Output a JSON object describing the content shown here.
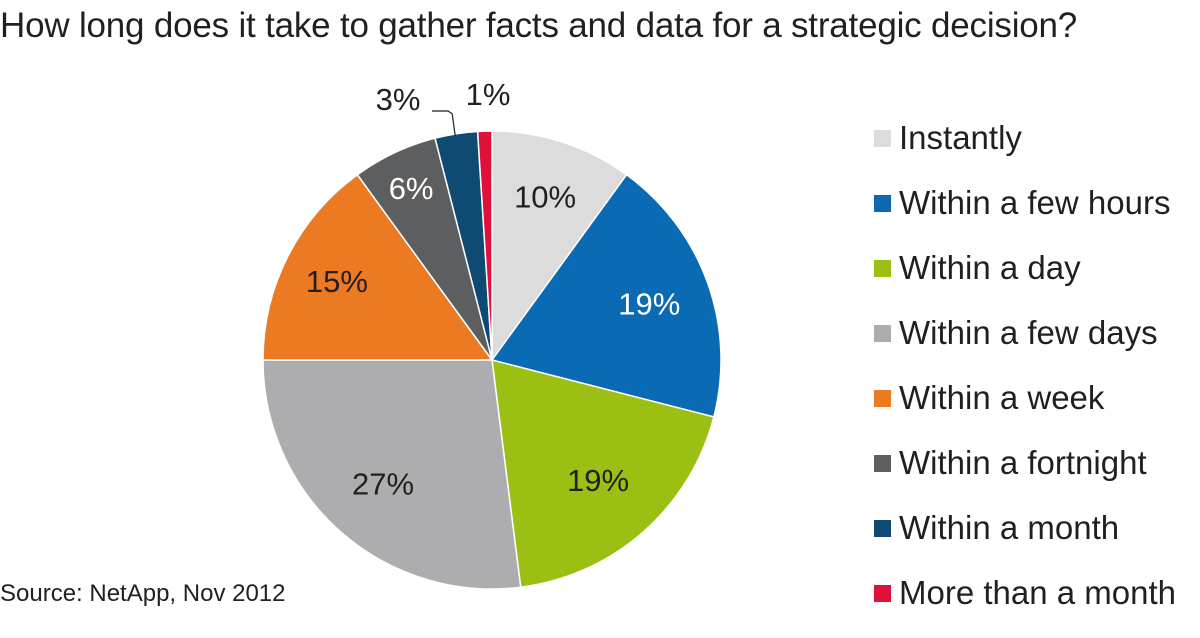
{
  "chart_data": {
    "type": "pie",
    "title": "How long does it take to gather facts and data for a strategic decision?",
    "source": "Source:  NetApp, Nov 2012",
    "legend_position": "right",
    "slices": [
      {
        "label": "Instantly",
        "value": 10,
        "value_label": "10%",
        "color": "#dcdcdc"
      },
      {
        "label": "Within a few hours",
        "value": 19,
        "value_label": "19%",
        "color": "#0a6ab4"
      },
      {
        "label": "Within a day",
        "value": 19,
        "value_label": "19%",
        "color": "#9cbf14"
      },
      {
        "label": "Within a few days",
        "value": 27,
        "value_label": "27%",
        "color": "#adadaf"
      },
      {
        "label": "Within a week",
        "value": 15,
        "value_label": "15%",
        "color": "#ec7a22"
      },
      {
        "label": "Within a fortnight",
        "value": 6,
        "value_label": "6%",
        "color": "#5d5e60"
      },
      {
        "label": "Within a month",
        "value": 3,
        "value_label": "3%",
        "color": "#0f4a73"
      },
      {
        "label": "More than a month",
        "value": 1,
        "value_label": "1%",
        "color": "#e0103a"
      }
    ]
  }
}
